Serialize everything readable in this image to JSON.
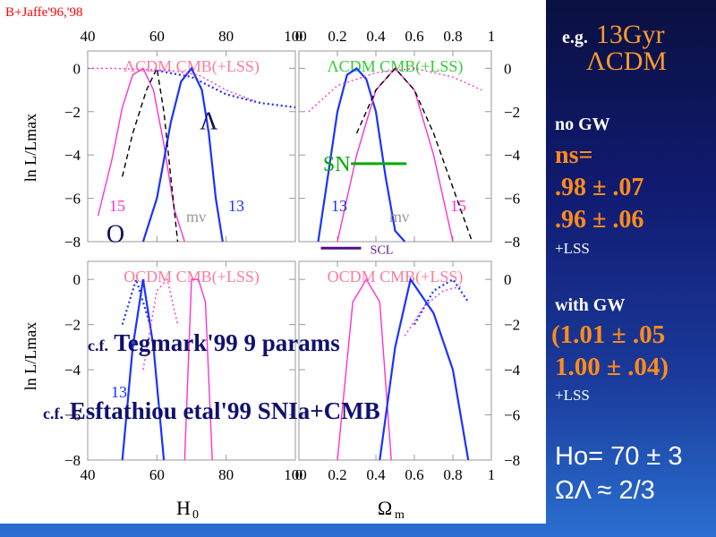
{
  "citation": "B+Jaffe'96,'98",
  "notes": {
    "tegmark": {
      "prefix": "c.f.",
      "text": "Tegmark'99  9 params"
    },
    "efstathiou": {
      "prefix": "c.f.",
      "text": "Esftathiou etal'99 SNIa+CMB"
    }
  },
  "side": {
    "eg_prefix": "e.g.",
    "eg_title": "13Gyr",
    "eg_model": "ΛCDM",
    "no_gw": "no GW",
    "ns_label": "ns=",
    "ns_val1": ".98 ± .07",
    "ns_val2": ".96 ± .06",
    "lss1": "+LSS",
    "with_gw": "with GW",
    "gw_val1": "(1.01 ± .05",
    "gw_val2": "1.00 ± .04)",
    "lss2": "+LSS",
    "h0": "Ho= 70 ± 3",
    "omega": "ΩΛ ≈ 2/3"
  },
  "chart_data": [
    {
      "type": "line",
      "panel": "top-left",
      "title": "ΛCDM CMB(+LSS)",
      "xlabel": "H0",
      "ylabel": "ln L/Lmax",
      "xlim": [
        40,
        100
      ],
      "ylim": [
        -8,
        0.8
      ],
      "xticks": [
        40,
        60,
        80,
        100
      ],
      "yticks": [
        0,
        -2,
        -4,
        -6,
        -8
      ],
      "labels": [
        "15",
        "mν",
        "13"
      ],
      "series": [
        {
          "color": "#ff33cc",
          "style": "solid",
          "x": [
            43,
            47,
            50,
            53,
            56,
            59,
            62,
            65,
            68
          ],
          "y": [
            -6.8,
            -4.2,
            -1.8,
            -0.3,
            0,
            -1,
            -3.5,
            -6.5,
            -8
          ]
        },
        {
          "color": "#1a33ff",
          "style": "solid",
          "x": [
            56,
            60,
            64,
            67,
            70,
            73,
            75,
            77,
            79
          ],
          "y": [
            -8,
            -6,
            -2.5,
            -0.6,
            0,
            -1,
            -3,
            -6,
            -8
          ]
        },
        {
          "color": "#000000",
          "style": "dashed",
          "x": [
            50,
            53,
            57,
            60,
            62,
            64,
            66
          ],
          "y": [
            -5,
            -3,
            -1,
            0,
            -2,
            -5,
            -8
          ]
        },
        {
          "color": "#ff33cc",
          "style": "dotted",
          "x": [
            40,
            48,
            56,
            64,
            72,
            80,
            88
          ],
          "y": [
            0,
            0,
            -0.05,
            -0.1,
            -0.3,
            -1,
            -1.5
          ]
        },
        {
          "color": "#1a33ff",
          "style": "dotted",
          "x": [
            60,
            70,
            80,
            90,
            100
          ],
          "y": [
            -0.1,
            -0.4,
            -1.2,
            -1.6,
            -1.8
          ]
        }
      ],
      "markers": [
        {
          "label": "Λ",
          "x": 75,
          "y": -2.4
        },
        {
          "label": "O",
          "x": 48,
          "y": -7.6
        }
      ]
    },
    {
      "type": "line",
      "panel": "top-right",
      "title": "ΛCDM CMB(+LSS)",
      "xlabel": "Ωm",
      "ylabel": "ln L/Lmax",
      "xlim": [
        0,
        1
      ],
      "ylim": [
        -8,
        0.8
      ],
      "xticks": [
        0,
        0.2,
        0.4,
        0.6,
        0.8,
        1
      ],
      "yticks": [
        0,
        -2,
        -4,
        -6,
        -8
      ],
      "labels": [
        "13",
        "mν",
        "15"
      ],
      "series": [
        {
          "color": "#1a33ff",
          "style": "solid",
          "x": [
            0.1,
            0.15,
            0.2,
            0.25,
            0.3,
            0.35,
            0.4,
            0.45,
            0.5,
            0.55
          ],
          "y": [
            -8,
            -5,
            -2,
            -0.3,
            0,
            -0.5,
            -2,
            -5,
            -7.5,
            -8
          ]
        },
        {
          "color": "#ff33cc",
          "style": "solid",
          "x": [
            0.2,
            0.3,
            0.4,
            0.5,
            0.6,
            0.7,
            0.8
          ],
          "y": [
            -8,
            -4,
            -1,
            0,
            -1,
            -4,
            -8
          ]
        },
        {
          "color": "#000000",
          "style": "dashed",
          "x": [
            0.3,
            0.4,
            0.5,
            0.6,
            0.7,
            0.8,
            0.9
          ],
          "y": [
            -3,
            -1,
            0,
            -1,
            -3,
            -5.5,
            -8
          ]
        },
        {
          "color": "#ff33cc",
          "style": "dotted",
          "x": [
            0.05,
            0.2,
            0.4,
            0.6,
            0.8,
            0.95
          ],
          "y": [
            -2,
            -0.8,
            -0.2,
            0,
            -0.4,
            -1
          ]
        }
      ],
      "markers": [
        {
          "label": "SN",
          "x": 0.28,
          "y": -4.4
        },
        {
          "label": "SCL",
          "x": 0.3,
          "y": -8.3
        }
      ]
    },
    {
      "type": "line",
      "panel": "bottom-left",
      "title": "OCDM CMB(+LSS)",
      "xlabel": "H0",
      "ylabel": "ln L/Lmax",
      "xlim": [
        40,
        100
      ],
      "ylim": [
        -8,
        0.8
      ],
      "xticks": [
        40,
        60,
        80,
        100
      ],
      "yticks": [
        0,
        -2,
        -4,
        -6,
        -8
      ],
      "labels": [
        "13"
      ],
      "series": [
        {
          "color": "#1a33ff",
          "style": "solid",
          "x": [
            50,
            53,
            56,
            59,
            62
          ],
          "y": [
            -8,
            -3,
            0,
            -3,
            -8
          ]
        },
        {
          "color": "#1a33ff",
          "style": "dotted",
          "x": [
            50,
            54,
            58
          ],
          "y": [
            -2,
            0,
            -2
          ]
        },
        {
          "color": "#ff33cc",
          "style": "solid",
          "x": [
            68,
            70,
            72,
            74,
            76
          ],
          "y": [
            -8,
            0,
            0,
            -1,
            -8
          ]
        },
        {
          "color": "#ff33cc",
          "style": "dotted",
          "x": [
            56,
            60,
            63,
            66
          ],
          "y": [
            -4,
            -0.5,
            0,
            -2
          ]
        }
      ]
    },
    {
      "type": "line",
      "panel": "bottom-right",
      "title": "OCDM CMB(+LSS)",
      "xlabel": "Ωm",
      "ylabel": "ln L/Lmax",
      "xlim": [
        0,
        1
      ],
      "ylim": [
        -8,
        0.8
      ],
      "xticks": [
        0,
        0.2,
        0.4,
        0.6,
        0.8,
        1
      ],
      "yticks": [
        0,
        -2,
        -4,
        -6,
        -8
      ],
      "series": [
        {
          "color": "#ff33cc",
          "style": "solid",
          "x": [
            0.2,
            0.28,
            0.35,
            0.42,
            0.48
          ],
          "y": [
            -8,
            -1,
            0,
            -1,
            -8
          ]
        },
        {
          "color": "#1a33ff",
          "style": "solid",
          "x": [
            0.42,
            0.5,
            0.58,
            0.7,
            0.8,
            0.88
          ],
          "y": [
            -8,
            -3,
            0,
            -1.5,
            -4,
            -8
          ]
        },
        {
          "color": "#1a33ff",
          "style": "dotted",
          "x": [
            0.6,
            0.7,
            0.8,
            0.88
          ],
          "y": [
            -2,
            -0.5,
            0,
            -1
          ]
        },
        {
          "color": "#ff33cc",
          "style": "dotted",
          "x": [
            0.55,
            0.65,
            0.75,
            0.85
          ],
          "y": [
            -2.5,
            -1.2,
            -0.5,
            -0.3
          ]
        }
      ]
    }
  ]
}
